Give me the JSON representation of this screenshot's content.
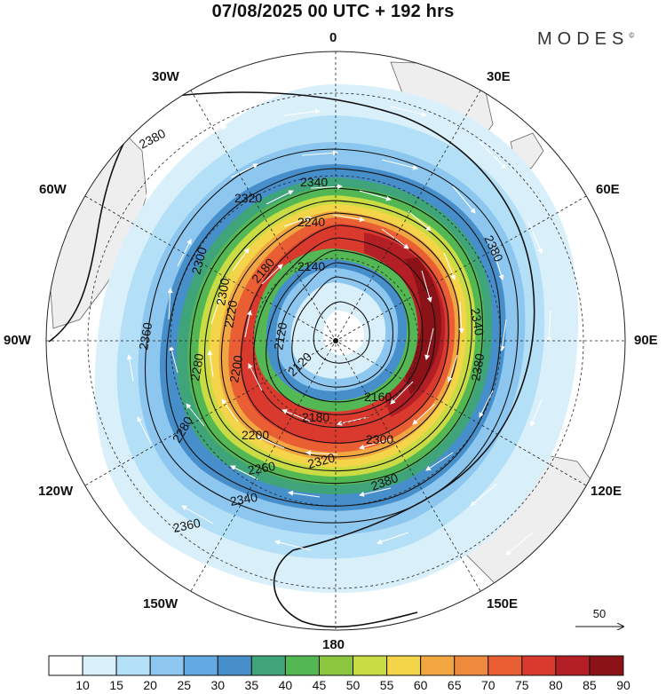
{
  "title": "07/08/2025  00 UTC  + 192 hrs",
  "logo": "MODES",
  "logo_mark": "©",
  "lon_labels": {
    "n": "0",
    "s": "180",
    "e": "90E",
    "w": "90W",
    "ne1": "30E",
    "ne2": "60E",
    "se1": "120E",
    "se2": "150E",
    "nw1": "30W",
    "nw2": "60W",
    "sw1": "120W",
    "sw2": "150W"
  },
  "vector_ref": "50",
  "colorbar": {
    "labels": [
      "10",
      "15",
      "20",
      "25",
      "30",
      "35",
      "40",
      "45",
      "50",
      "55",
      "60",
      "65",
      "70",
      "75",
      "80",
      "85",
      "90"
    ],
    "colors": [
      "#ffffff",
      "#d9f0fb",
      "#b3e0f7",
      "#8dc7ef",
      "#63aae3",
      "#478fcb",
      "#3fa47a",
      "#53b853",
      "#8cc63f",
      "#c9dc44",
      "#f4d54a",
      "#f2a641",
      "#ef8a3c",
      "#e95f33",
      "#d93a2d",
      "#b41f25",
      "#8b1318"
    ]
  },
  "contour_labels": [
    "2380",
    "2340",
    "2320",
    "2300",
    "2260",
    "2240",
    "2180",
    "2140",
    "2120",
    "2360",
    "2280",
    "2220",
    "2200",
    "2160",
    "2380",
    "2340",
    "2380",
    "2300",
    "2320",
    "2260",
    "2200",
    "2180",
    "2160",
    "2120",
    "2140",
    "2340",
    "2360",
    "2380",
    "2280",
    "2260",
    "2220"
  ]
}
